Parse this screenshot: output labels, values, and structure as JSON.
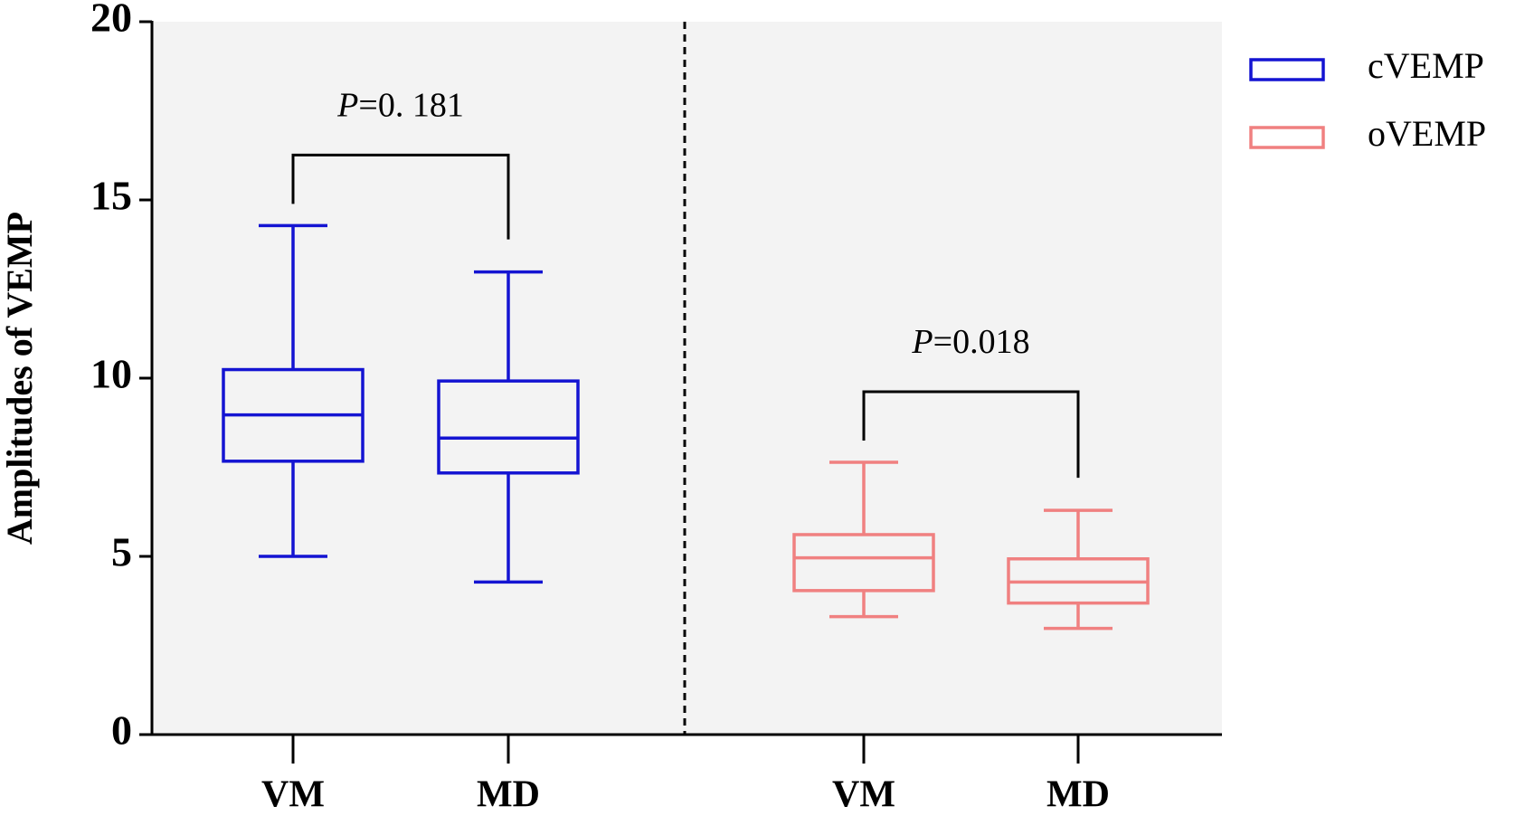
{
  "chart_data": {
    "type": "box",
    "y_label": "Amplitudes of VEMP",
    "categories": [
      "VM",
      "MD",
      "VM",
      "MD"
    ],
    "series": [
      {
        "name": "cVEMP",
        "color": "#1414d2",
        "values": [
          [
            5.0,
            7.67,
            8.97,
            10.24,
            14.28
          ],
          [
            4.28,
            7.34,
            8.32,
            9.92,
            12.98
          ],
          null,
          null
        ]
      },
      {
        "name": "oVEMP",
        "color": "#f08080",
        "values": [
          null,
          null,
          [
            3.31,
            4.04,
            4.96,
            5.61,
            7.64
          ],
          [
            2.98,
            3.69,
            4.28,
            4.93,
            6.29
          ]
        ]
      }
    ],
    "annotations": [
      {
        "prefix": "P",
        "text": "=0. 181"
      },
      {
        "prefix": "P",
        "text": "=0.018"
      }
    ],
    "ylim": [
      0,
      20
    ],
    "yticks": [
      0,
      5,
      10,
      15,
      20
    ],
    "legend": "right"
  }
}
